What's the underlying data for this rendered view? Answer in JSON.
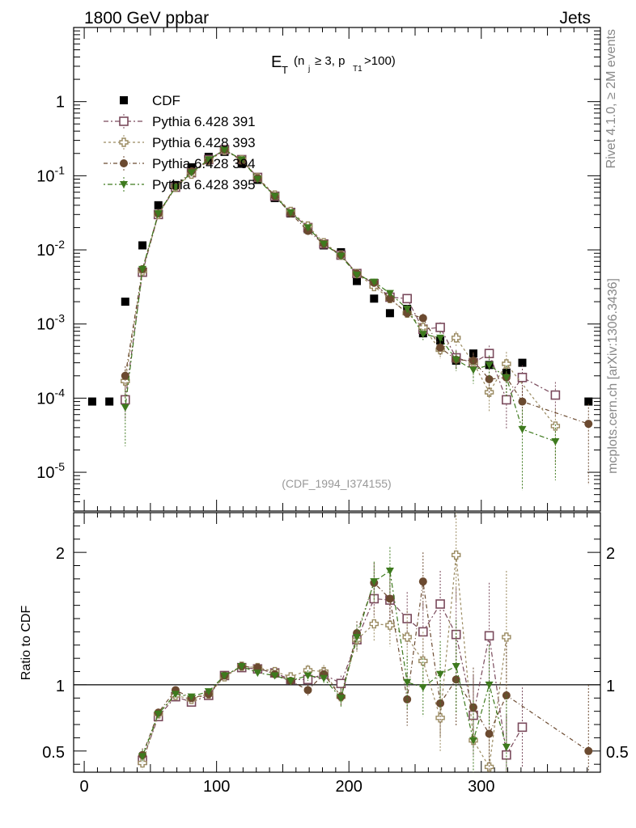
{
  "header": {
    "left_label": "1800 GeV ppbar",
    "right_label": "Jets",
    "rivet_label": "Rivet 4.1.0, ≥ 2M events",
    "mcplots_label": "mcplots.cern.ch [arXiv:1306.3436]",
    "analysis_id": "(CDF_1994_I374155)"
  },
  "colors": {
    "cdf": "#000000",
    "p391": "#7a4a5c",
    "p393": "#9a8a60",
    "p394": "#6b4a30",
    "p395": "#3e7a1e"
  },
  "chart_data": [
    {
      "type": "scatter",
      "panel": "main",
      "title_main": "E",
      "title_sub": "T",
      "title_rest": "(n",
      "title_j": "j",
      "title_mid": "≥ 3, p",
      "title_t1": "T1",
      "title_end": ">100)",
      "yscale": "log",
      "xlim": [
        -8,
        390
      ],
      "ylim": [
        3e-06,
        10
      ],
      "ytick_labels": {
        "base": "10",
        "exps": [
          "-5",
          "-4",
          "-3",
          "-2",
          "-1"
        ],
        "one": "1"
      },
      "legend": {
        "placement": "top-left",
        "entries": [
          {
            "key": "cdf",
            "label": "CDF"
          },
          {
            "key": "p391",
            "label": "Pythia 6.428 391"
          },
          {
            "key": "p393",
            "label": "Pythia 6.428 393"
          },
          {
            "key": "p394",
            "label": "Pythia 6.428 394"
          },
          {
            "key": "p395",
            "label": "Pythia 6.428 395"
          }
        ]
      },
      "series": [
        {
          "name": "CDF",
          "key": "cdf",
          "x": [
            6,
            19,
            31,
            44,
            56,
            69,
            81,
            94,
            106,
            119,
            131,
            144,
            156,
            169,
            181,
            194,
            206,
            219,
            231,
            244,
            256,
            269,
            281,
            294,
            306,
            319,
            331,
            381
          ],
          "y": [
            9e-05,
            9e-05,
            0.002,
            0.0115,
            0.04,
            0.075,
            0.13,
            0.18,
            0.21,
            0.145,
            0.088,
            0.05,
            0.031,
            0.019,
            0.0115,
            0.0093,
            0.0038,
            0.0022,
            0.0014,
            0.0016,
            0.00075,
            0.0006,
            0.00032,
            0.0004,
            0.00028,
            0.00022,
            0.0003,
            9e-05
          ]
        },
        {
          "name": "Pythia 6.428 391",
          "key": "p391",
          "x": [
            31,
            44,
            56,
            69,
            81,
            94,
            106,
            119,
            131,
            144,
            156,
            169,
            181,
            194,
            206,
            219,
            231,
            244,
            256,
            269,
            281,
            294,
            306,
            319,
            331,
            356
          ],
          "y": [
            9.5e-05,
            0.005,
            0.03,
            0.07,
            0.11,
            0.165,
            0.225,
            0.165,
            0.095,
            0.053,
            0.032,
            0.02,
            0.012,
            0.0085,
            0.0048,
            0.0035,
            0.0023,
            0.0022,
            0.00085,
            0.0009,
            0.00035,
            0.0003,
            0.0004,
            9.5e-05,
            0.00019,
            0.00011
          ],
          "yerr": [
            0.45,
            0.08,
            0.03,
            0.02,
            0.02,
            0.02,
            0.02,
            0.02,
            0.02,
            0.03,
            0.03,
            0.04,
            0.05,
            0.05,
            0.07,
            0.08,
            0.1,
            0.1,
            0.17,
            0.17,
            0.28,
            0.3,
            0.28,
            0.6,
            0.45,
            0.5
          ]
        },
        {
          "name": "Pythia 6.428 393",
          "key": "p393",
          "x": [
            31,
            44,
            56,
            69,
            81,
            94,
            106,
            119,
            131,
            144,
            156,
            169,
            181,
            194,
            206,
            219,
            231,
            244,
            256,
            269,
            281,
            294,
            306,
            319,
            356
          ],
          "y": [
            0.00017,
            0.0052,
            0.03,
            0.07,
            0.105,
            0.16,
            0.22,
            0.165,
            0.095,
            0.055,
            0.033,
            0.021,
            0.0125,
            0.0085,
            0.0048,
            0.0032,
            0.0022,
            0.0014,
            0.0009,
            0.00045,
            0.00065,
            0.0003,
            0.00012,
            0.00029,
            4.2e-05
          ],
          "yerr": [
            0.4,
            0.08,
            0.03,
            0.02,
            0.02,
            0.02,
            0.02,
            0.02,
            0.02,
            0.03,
            0.03,
            0.04,
            0.05,
            0.06,
            0.07,
            0.09,
            0.1,
            0.14,
            0.17,
            0.25,
            0.22,
            0.35,
            0.45,
            0.45,
            0.7
          ]
        },
        {
          "name": "Pythia 6.428 394",
          "key": "p394",
          "x": [
            31,
            44,
            56,
            69,
            81,
            94,
            106,
            119,
            131,
            144,
            156,
            169,
            181,
            194,
            206,
            219,
            231,
            244,
            256,
            269,
            281,
            294,
            306,
            319,
            331,
            381
          ],
          "y": [
            0.0002,
            0.0055,
            0.031,
            0.072,
            0.115,
            0.16,
            0.225,
            0.16,
            0.093,
            0.053,
            0.031,
            0.018,
            0.012,
            0.0085,
            0.0048,
            0.0036,
            0.0022,
            0.0014,
            0.0012,
            0.00048,
            0.00033,
            0.00032,
            0.00018,
            0.00019,
            9e-05,
            4.5e-05
          ],
          "yerr": [
            0.35,
            0.08,
            0.03,
            0.02,
            0.02,
            0.02,
            0.02,
            0.02,
            0.02,
            0.03,
            0.03,
            0.04,
            0.05,
            0.06,
            0.07,
            0.08,
            0.1,
            0.13,
            0.15,
            0.25,
            0.3,
            0.3,
            0.4,
            0.45,
            0.55,
            0.85
          ]
        },
        {
          "name": "Pythia 6.428 395",
          "key": "p395",
          "x": [
            31,
            44,
            56,
            69,
            81,
            94,
            106,
            119,
            131,
            144,
            156,
            169,
            181,
            194,
            206,
            219,
            231,
            244,
            256,
            269,
            281,
            294,
            306,
            319,
            331,
            356
          ],
          "y": [
            7.5e-05,
            0.0055,
            0.031,
            0.07,
            0.11,
            0.165,
            0.225,
            0.165,
            0.09,
            0.053,
            0.032,
            0.02,
            0.012,
            0.0083,
            0.0046,
            0.0037,
            0.0026,
            0.0016,
            0.00073,
            0.00065,
            0.00033,
            0.00024,
            0.00028,
            0.00019,
            3.8e-05,
            2.6e-05
          ],
          "yerr": [
            0.7,
            0.08,
            0.03,
            0.02,
            0.02,
            0.02,
            0.02,
            0.02,
            0.02,
            0.03,
            0.03,
            0.04,
            0.05,
            0.06,
            0.07,
            0.08,
            0.1,
            0.13,
            0.17,
            0.2,
            0.3,
            0.35,
            0.35,
            0.45,
            0.85,
            0.7
          ]
        }
      ]
    },
    {
      "type": "scatter",
      "panel": "ratio",
      "ylabel": "Ratio to CDF",
      "xlim": [
        -8,
        390
      ],
      "ylim": [
        0.34,
        2.3
      ],
      "yticks": [
        0.5,
        1,
        2
      ],
      "ytick_labels": [
        "0.5",
        "1",
        "2"
      ],
      "xticks": [
        0,
        100,
        200,
        300
      ],
      "xtick_labels": [
        "0",
        "100",
        "200",
        "300"
      ],
      "reference_line": 1,
      "series": [
        {
          "name": "Pythia 6.428 391",
          "key": "p391",
          "x": [
            44,
            56,
            69,
            81,
            94,
            106,
            119,
            131,
            144,
            156,
            169,
            181,
            194,
            206,
            219,
            231,
            244,
            256,
            269,
            281,
            294,
            306,
            319,
            331
          ],
          "y": [
            0.43,
            0.76,
            0.91,
            0.87,
            0.92,
            1.07,
            1.13,
            1.12,
            1.09,
            1.04,
            1.04,
            1.08,
            1.01,
            1.34,
            1.65,
            1.64,
            1.5,
            1.4,
            1.61,
            1.38,
            0.77,
            1.37,
            0.47,
            0.68
          ],
          "yerr": [
            0.05,
            0.03,
            0.02,
            0.02,
            0.02,
            0.02,
            0.02,
            0.02,
            0.02,
            0.03,
            0.04,
            0.05,
            0.06,
            0.08,
            0.13,
            0.16,
            0.2,
            0.22,
            0.25,
            0.35,
            0.3,
            0.4,
            0.3,
            0.3
          ]
        },
        {
          "name": "Pythia 6.428 393",
          "key": "p393",
          "x": [
            44,
            56,
            69,
            81,
            94,
            106,
            119,
            131,
            144,
            156,
            169,
            181,
            194,
            206,
            219,
            231,
            244,
            256,
            269,
            281,
            294,
            306,
            319
          ],
          "y": [
            0.41,
            0.78,
            0.92,
            0.89,
            0.93,
            1.06,
            1.14,
            1.13,
            1.1,
            1.06,
            1.11,
            1.1,
            0.91,
            1.34,
            1.46,
            1.45,
            1.36,
            1.18,
            0.75,
            1.98,
            0.58,
            0.38,
            1.36
          ],
          "yerr": [
            0.05,
            0.03,
            0.02,
            0.02,
            0.02,
            0.02,
            0.02,
            0.02,
            0.02,
            0.03,
            0.04,
            0.05,
            0.07,
            0.09,
            0.13,
            0.16,
            0.2,
            0.22,
            0.25,
            0.35,
            0.3,
            0.3,
            0.5
          ]
        },
        {
          "name": "Pythia 6.428 394",
          "key": "p394",
          "x": [
            44,
            56,
            69,
            81,
            94,
            106,
            119,
            131,
            144,
            156,
            169,
            181,
            194,
            206,
            219,
            231,
            244,
            256,
            269,
            281,
            294,
            306,
            319,
            381
          ],
          "y": [
            0.47,
            0.79,
            0.96,
            0.9,
            0.93,
            1.07,
            1.14,
            1.13,
            1.08,
            1.03,
            0.96,
            1.08,
            0.91,
            1.39,
            1.77,
            1.65,
            0.89,
            1.78,
            0.86,
            1.04,
            0.83,
            0.63,
            0.92,
            0.5
          ],
          "yerr": [
            0.05,
            0.03,
            0.02,
            0.02,
            0.02,
            0.02,
            0.02,
            0.02,
            0.02,
            0.03,
            0.04,
            0.05,
            0.07,
            0.09,
            0.15,
            0.18,
            0.2,
            0.22,
            0.25,
            0.35,
            0.3,
            0.3,
            0.4,
            0.5
          ]
        },
        {
          "name": "Pythia 6.428 395",
          "key": "p395",
          "x": [
            44,
            56,
            69,
            81,
            94,
            106,
            119,
            131,
            144,
            156,
            169,
            181,
            194,
            206,
            219,
            231,
            244,
            256,
            269,
            281,
            294,
            306,
            319
          ],
          "y": [
            0.46,
            0.78,
            0.93,
            0.91,
            0.95,
            1.07,
            1.14,
            1.09,
            1.07,
            1.03,
            1.07,
            1.05,
            0.9,
            1.36,
            1.78,
            1.86,
            1.02,
            0.98,
            1.08,
            1.14,
            0.58,
            1.0,
            0.53
          ],
          "yerr": [
            0.05,
            0.03,
            0.02,
            0.02,
            0.02,
            0.02,
            0.02,
            0.02,
            0.02,
            0.03,
            0.04,
            0.05,
            0.07,
            0.09,
            0.15,
            0.18,
            0.2,
            0.22,
            0.25,
            0.35,
            0.3,
            0.3,
            0.4
          ]
        }
      ]
    }
  ]
}
